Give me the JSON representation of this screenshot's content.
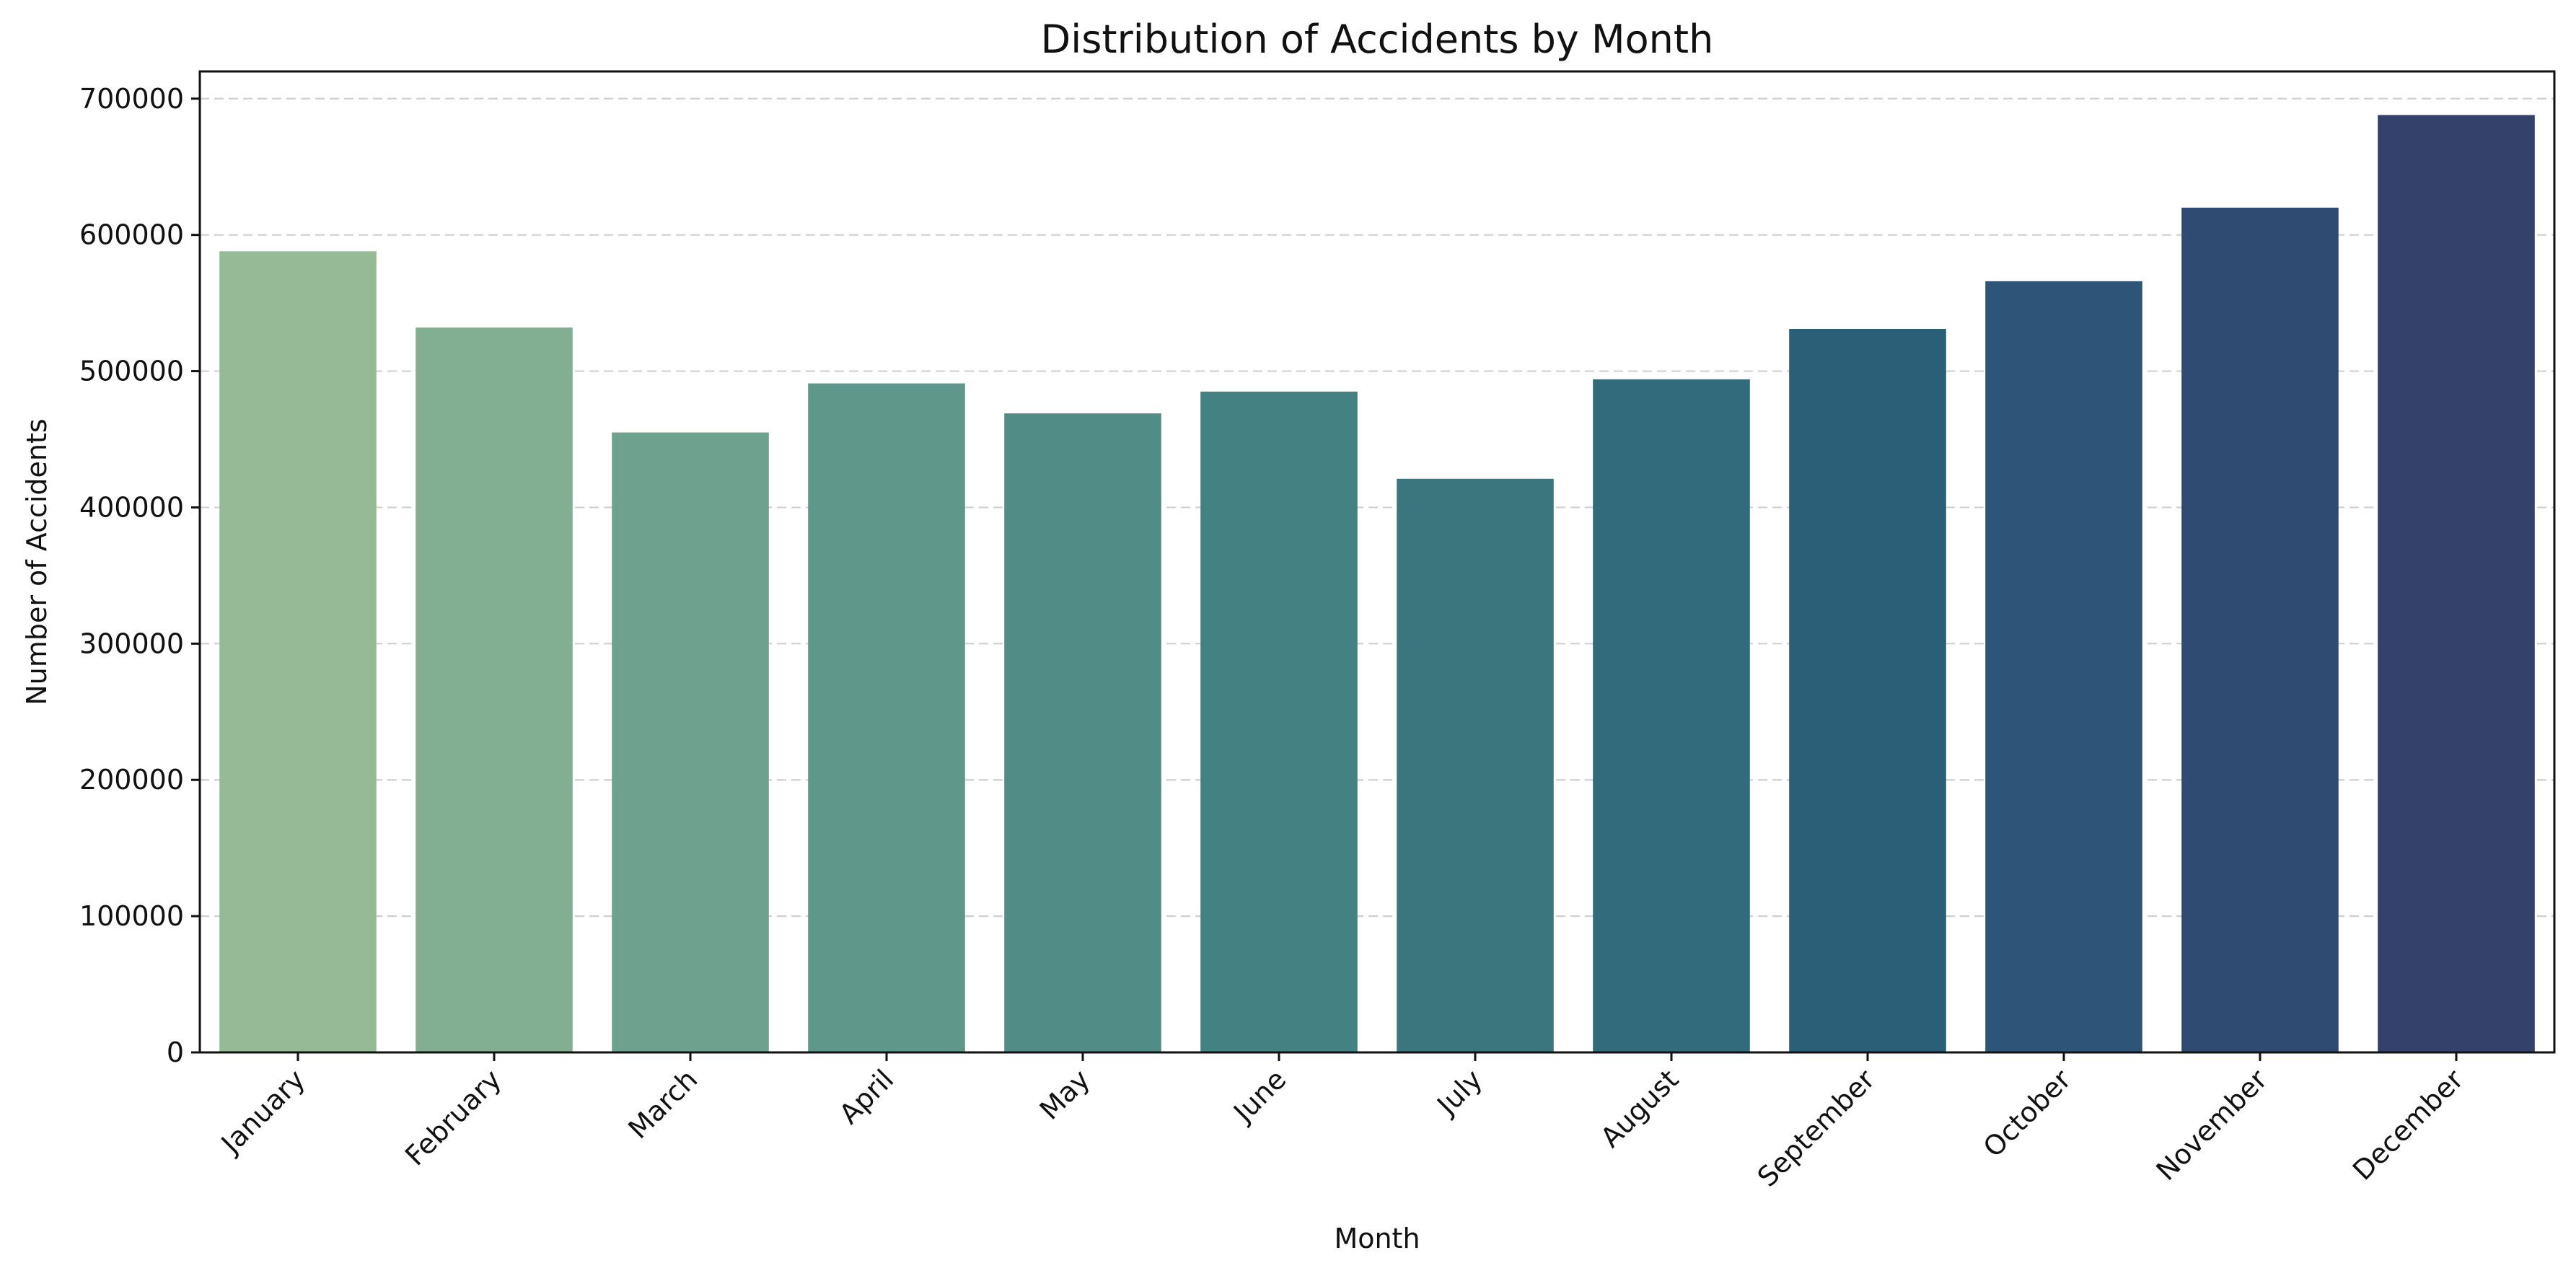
{
  "chart_data": {
    "type": "bar",
    "title": "Distribution of Accidents by Month",
    "xlabel": "Month",
    "ylabel": "Number of Accidents",
    "categories": [
      "January",
      "February",
      "March",
      "April",
      "May",
      "June",
      "July",
      "August",
      "September",
      "October",
      "November",
      "December"
    ],
    "values": [
      588000,
      532000,
      455000,
      491000,
      469000,
      485000,
      421000,
      494000,
      531000,
      566000,
      620000,
      688000
    ],
    "colors": [
      "#95ba95",
      "#82ae91",
      "#6fa28e",
      "#5f978a",
      "#518c86",
      "#448182",
      "#3b767e",
      "#326b7b",
      "#2b5f78",
      "#2c5577",
      "#2f4b71",
      "#34426b"
    ],
    "ylim": [
      0,
      720000
    ],
    "yticks": [
      0,
      100000,
      200000,
      300000,
      400000,
      500000,
      600000,
      700000
    ],
    "ytick_labels": [
      "0",
      "100000",
      "200000",
      "300000",
      "400000",
      "500000",
      "600000",
      "700000"
    ],
    "grid": true,
    "grid_axis": "y",
    "grid_style": "dashed"
  }
}
